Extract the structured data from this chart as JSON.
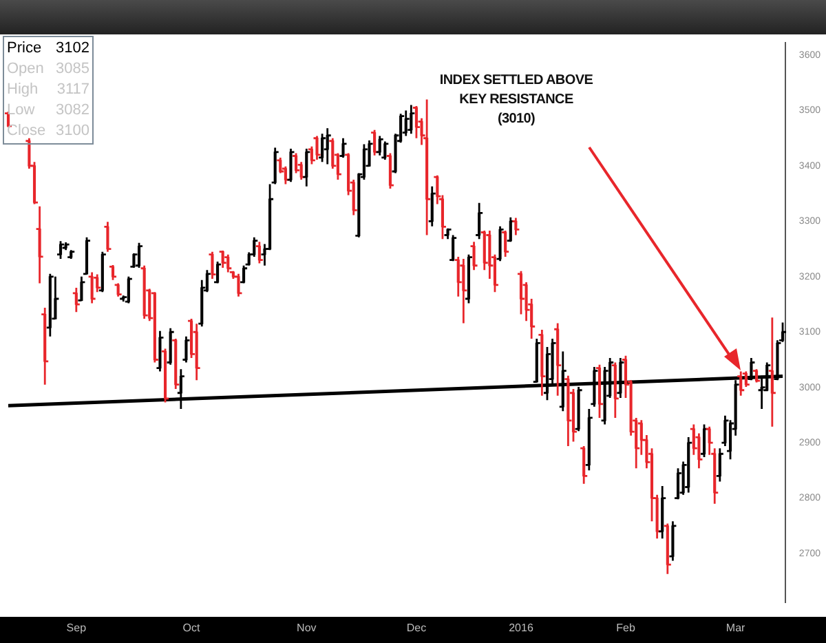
{
  "chart_data": {
    "type": "candlestick",
    "categories": [
      null,
      null,
      null,
      null,
      null,
      null,
      null,
      null,
      null,
      null,
      null,
      null,
      null,
      "Sep",
      null,
      null,
      null,
      null,
      null,
      null,
      null,
      null,
      null,
      null,
      null,
      null,
      null,
      null,
      null,
      null,
      null,
      null,
      null,
      null,
      null,
      "Oct",
      null,
      null,
      null,
      null,
      null,
      null,
      null,
      null,
      null,
      null,
      null,
      null,
      null,
      null,
      null,
      null,
      null,
      null,
      null,
      null,
      null,
      "Nov",
      null,
      null,
      null,
      null,
      null,
      null,
      null,
      null,
      null,
      null,
      null,
      null,
      null,
      null,
      null,
      null,
      null,
      null,
      null,
      null,
      "Dec",
      null,
      null,
      null,
      null,
      null,
      null,
      null,
      null,
      null,
      null,
      null,
      null,
      null,
      null,
      null,
      null,
      null,
      null,
      null,
      "2016",
      null,
      null,
      null,
      null,
      null,
      null,
      null,
      null,
      null,
      null,
      null,
      null,
      null,
      null,
      null,
      null,
      null,
      null,
      null,
      "Feb",
      null,
      null,
      null,
      null,
      null,
      null,
      null,
      null,
      null,
      null,
      null,
      null,
      null,
      null,
      null,
      null,
      null,
      null,
      null,
      null,
      "Mar",
      null,
      null,
      null,
      null,
      null,
      null,
      null,
      null,
      null
    ],
    "ohlc": [
      [
        3495,
        3498,
        3470,
        3472
      ],
      null,
      null,
      null,
      [
        3445,
        3450,
        3395,
        3400
      ],
      [
        3400,
        3407,
        3331,
        3334
      ],
      [
        3286,
        3327,
        3188,
        3236
      ],
      [
        3132,
        3144,
        3005,
        3047
      ],
      [
        3108,
        3205,
        3092,
        3200
      ],
      [
        3124,
        3200,
        3124,
        3160
      ],
      [
        3240,
        3264,
        3232,
        3258
      ],
      [
        3252,
        3262,
        3248,
        3258
      ],
      [
        3235,
        3248,
        3232,
        3245
      ],
      [
        3170,
        3180,
        3136,
        3150
      ],
      [
        3157,
        3200,
        3156,
        3190
      ],
      [
        3205,
        3271,
        3204,
        3265
      ],
      [
        3200,
        3208,
        3152,
        3160
      ],
      [
        3198,
        3204,
        3172,
        3180
      ],
      [
        3175,
        3245,
        3172,
        3240
      ],
      [
        3290,
        3299,
        3245,
        3250
      ],
      [
        3218,
        3221,
        3194,
        3200
      ],
      [
        3185,
        3188,
        3164,
        3168
      ],
      [
        3160,
        3166,
        3155,
        3163
      ],
      [
        3155,
        3200,
        3152,
        3196
      ],
      [
        3218,
        3242,
        3216,
        3240
      ],
      [
        3220,
        3261,
        3216,
        3255
      ],
      [
        3215,
        3220,
        3124,
        3130
      ],
      [
        3175,
        3178,
        3120,
        3125
      ],
      [
        3170,
        3172,
        3045,
        3050
      ],
      [
        3035,
        3102,
        3029,
        3090
      ],
      [
        3065,
        3070,
        2973,
        2980
      ],
      [
        3045,
        3107,
        3041,
        3100
      ],
      [
        3085,
        3088,
        2997,
        3005
      ],
      [
        2990,
        3033,
        2961,
        3020
      ],
      [
        3050,
        3092,
        3045,
        3085
      ],
      [
        3120,
        3124,
        3053,
        3060
      ],
      [
        3100,
        3115,
        3013,
        3035
      ],
      [
        3115,
        3194,
        3110,
        3180
      ],
      [
        3175,
        3212,
        3172,
        3205
      ],
      [
        3240,
        3245,
        3196,
        3204
      ],
      [
        3190,
        3227,
        3188,
        3222
      ],
      [
        3245,
        3247,
        3216,
        3225
      ],
      [
        3235,
        3240,
        3208,
        3215
      ],
      [
        3208,
        3210,
        3196,
        3200
      ],
      [
        3200,
        3205,
        3164,
        3170
      ],
      [
        3190,
        3220,
        3188,
        3215
      ],
      [
        3222,
        3244,
        3220,
        3240
      ],
      [
        3240,
        3271,
        3236,
        3265
      ],
      [
        3255,
        3263,
        3224,
        3230
      ],
      [
        3240,
        3259,
        3220,
        3250
      ],
      [
        3250,
        3367,
        3248,
        3340
      ],
      [
        3370,
        3433,
        3367,
        3425
      ],
      [
        3410,
        3415,
        3387,
        3390
      ],
      [
        3395,
        3399,
        3367,
        3375
      ],
      [
        3375,
        3431,
        3371,
        3425
      ],
      [
        3418,
        3423,
        3387,
        3392
      ],
      [
        3402,
        3407,
        3375,
        3380
      ],
      [
        3380,
        3431,
        3363,
        3425
      ],
      [
        3430,
        3435,
        3403,
        3410
      ],
      [
        3450,
        3454,
        3411,
        3420
      ],
      [
        3415,
        3458,
        3407,
        3450
      ],
      [
        3430,
        3468,
        3403,
        3455
      ],
      [
        3445,
        3450,
        3395,
        3400
      ],
      [
        3420,
        3423,
        3375,
        3385
      ],
      [
        3418,
        3450,
        3415,
        3440
      ],
      [
        3420,
        3423,
        3347,
        3355
      ],
      [
        3370,
        3375,
        3311,
        3320
      ],
      [
        3274,
        3387,
        3271,
        3385
      ],
      [
        3380,
        3439,
        3375,
        3430
      ],
      [
        3400,
        3446,
        3399,
        3440
      ],
      [
        3460,
        3465,
        3419,
        3425
      ],
      [
        3425,
        3454,
        3419,
        3448
      ],
      [
        3415,
        3444,
        3411,
        3440
      ],
      [
        3418,
        3423,
        3359,
        3365
      ],
      [
        3390,
        3458,
        3387,
        3455
      ],
      [
        3445,
        3494,
        3442,
        3490
      ],
      [
        3460,
        3500,
        3454,
        3485
      ],
      [
        3465,
        3510,
        3458,
        3495
      ],
      [
        3505,
        3508,
        3450,
        3470
      ],
      [
        3480,
        3486,
        3438,
        3455
      ],
      [
        3450,
        3520,
        3275,
        3340
      ],
      [
        3300,
        3363,
        3291,
        3350
      ],
      [
        3380,
        3383,
        3331,
        3345
      ],
      [
        3340,
        3347,
        3268,
        3290
      ],
      [
        3275,
        3287,
        3268,
        3285
      ],
      [
        3230,
        3275,
        3228,
        3270
      ],
      [
        3230,
        3236,
        3164,
        3190
      ],
      [
        3220,
        3232,
        3116,
        3175
      ],
      [
        3160,
        3240,
        3152,
        3235
      ],
      [
        3255,
        3263,
        3212,
        3220
      ],
      [
        3275,
        3333,
        3268,
        3315
      ],
      [
        3280,
        3283,
        3212,
        3225
      ],
      [
        3275,
        3283,
        3196,
        3220
      ],
      [
        3235,
        3240,
        3172,
        3185
      ],
      [
        3232,
        3291,
        3228,
        3285
      ],
      [
        3280,
        3283,
        3236,
        3245
      ],
      [
        3265,
        3307,
        3263,
        3300
      ],
      [
        3300,
        3306,
        3275,
        3285
      ],
      [
        3205,
        3210,
        3132,
        3160
      ],
      [
        3185,
        3190,
        3120,
        3140
      ],
      [
        3150,
        3160,
        3088,
        3110
      ],
      [
        3010,
        3088,
        3009,
        3080
      ],
      [
        3095,
        3104,
        2985,
        3020
      ],
      [
        2990,
        3073,
        2977,
        3060
      ],
      [
        3015,
        3088,
        3005,
        3080
      ],
      [
        3105,
        3116,
        2985,
        3040
      ],
      [
        2965,
        3065,
        2957,
        3030
      ],
      [
        3015,
        3021,
        2894,
        2940
      ],
      [
        2990,
        2997,
        2902,
        2920
      ],
      [
        2925,
        3001,
        2921,
        2995
      ],
      [
        2890,
        2894,
        2826,
        2840
      ],
      [
        2860,
        2961,
        2850,
        2945
      ],
      [
        2970,
        3037,
        2965,
        3030
      ],
      [
        3035,
        3041,
        2945,
        2970
      ],
      [
        2940,
        3037,
        2933,
        3030
      ],
      [
        2985,
        3053,
        2981,
        3045
      ],
      [
        3040,
        3045,
        2945,
        2980
      ],
      [
        2990,
        3053,
        2981,
        3045
      ],
      [
        3050,
        3057,
        2981,
        3005
      ],
      [
        3010,
        3013,
        2913,
        2920
      ],
      [
        2940,
        2945,
        2854,
        2890
      ],
      [
        2935,
        2941,
        2878,
        2905
      ],
      [
        2905,
        2914,
        2854,
        2865
      ],
      [
        2880,
        2890,
        2758,
        2800
      ],
      [
        2800,
        2806,
        2727,
        2740
      ],
      [
        2740,
        2822,
        2727,
        2800
      ],
      [
        2750,
        2754,
        2663,
        2680
      ],
      [
        2695,
        2758,
        2687,
        2750
      ],
      [
        2800,
        2854,
        2798,
        2845
      ],
      [
        2810,
        2866,
        2806,
        2860
      ],
      [
        2820,
        2910,
        2810,
        2900
      ],
      [
        2925,
        2933,
        2878,
        2890
      ],
      [
        2910,
        2917,
        2854,
        2870
      ],
      [
        2880,
        2933,
        2874,
        2925
      ],
      [
        2925,
        2929,
        2878,
        2900
      ],
      [
        2880,
        2890,
        2790,
        2810
      ],
      [
        2840,
        2890,
        2830,
        2880
      ],
      [
        2900,
        2949,
        2894,
        2940
      ],
      [
        2885,
        2941,
        2870,
        2935
      ],
      [
        2925,
        3013,
        2913,
        3005
      ],
      [
        3020,
        3029,
        2985,
        2995
      ],
      [
        3025,
        3029,
        3001,
        3005
      ],
      [
        3015,
        3053,
        3013,
        3045
      ],
      [
        3030,
        3033,
        3009,
        3012
      ],
      [
        2995,
        3021,
        2961,
        3000
      ],
      [
        2995,
        3045,
        2993,
        3040
      ],
      [
        3030,
        3126,
        2929,
        2990
      ],
      [
        3015,
        3085,
        3013,
        3080
      ],
      [
        3085,
        3117,
        3082,
        3100
      ]
    ],
    "colors": [
      "#e8262b",
      null,
      null,
      null,
      "#e8262b",
      "#e8262b",
      "#e8262b",
      "#e8262b",
      "#000000",
      "#000000",
      "#000000",
      "#000000",
      "#000000",
      "#e8262b",
      "#000000",
      "#000000",
      "#e8262b",
      "#e8262b",
      "#000000",
      "#e8262b",
      "#e8262b",
      "#e8262b",
      "#000000",
      "#000000",
      "#000000",
      "#000000",
      "#e8262b",
      "#e8262b",
      "#e8262b",
      "#000000",
      "#e8262b",
      "#000000",
      "#e8262b",
      "#000000",
      "#000000",
      "#e8262b",
      "#e8262b",
      "#000000",
      "#000000",
      "#e8262b",
      "#000000",
      "#e8262b",
      "#e8262b",
      "#e8262b",
      "#e8262b",
      "#000000",
      "#000000",
      "#000000",
      "#e8262b",
      "#000000",
      "#000000",
      "#000000",
      "#e8262b",
      "#e8262b",
      "#000000",
      "#e8262b",
      "#e8262b",
      "#000000",
      "#e8262b",
      "#e8262b",
      "#000000",
      "#000000",
      "#e8262b",
      "#e8262b",
      "#000000",
      "#e8262b",
      "#e8262b",
      "#000000",
      "#000000",
      "#000000",
      "#e8262b",
      "#000000",
      "#000000",
      "#e8262b",
      "#000000",
      "#000000",
      "#000000",
      "#000000",
      "#e8262b",
      "#e8262b",
      "#e8262b",
      "#000000",
      "#e8262b",
      "#e8262b",
      "#000000",
      "#000000",
      "#e8262b",
      "#e8262b",
      "#000000",
      "#e8262b",
      "#000000",
      "#e8262b",
      "#e8262b",
      "#e8262b",
      "#000000",
      "#e8262b",
      "#000000",
      "#e8262b",
      "#e8262b",
      "#e8262b",
      "#e8262b",
      "#000000",
      "#e8262b",
      "#000000",
      "#000000",
      "#e8262b",
      "#000000",
      "#e8262b",
      "#e8262b",
      "#000000",
      "#e8262b",
      "#000000",
      "#000000",
      "#e8262b",
      "#000000",
      "#000000",
      "#e8262b",
      "#000000",
      "#e8262b",
      "#e8262b",
      "#e8262b",
      "#e8262b",
      "#e8262b",
      "#e8262b",
      "#e8262b",
      "#000000",
      "#e8262b",
      "#000000",
      "#000000",
      "#000000",
      "#000000",
      "#e8262b",
      "#e8262b",
      "#000000",
      "#e8262b",
      "#e8262b",
      "#000000",
      "#000000",
      "#000000",
      "#000000",
      "#e8262b",
      "#e8262b",
      "#000000",
      "#e8262b",
      "#000000",
      "#000000",
      "#e8262b",
      "#000000",
      "#000000"
    ],
    "series": [
      {
        "type": "line",
        "color": "#000000",
        "values": [
          2967,
          null,
          null,
          null,
          null,
          null,
          null,
          null,
          null,
          null,
          null,
          null,
          null,
          null,
          null,
          null,
          null,
          null,
          null,
          null,
          null,
          null,
          null,
          null,
          null,
          null,
          null,
          null,
          null,
          null,
          null,
          null,
          null,
          null,
          null,
          null,
          null,
          null,
          null,
          null,
          null,
          null,
          null,
          null,
          null,
          null,
          null,
          null,
          null,
          null,
          null,
          null,
          null,
          null,
          null,
          null,
          null,
          null,
          null,
          null,
          null,
          null,
          null,
          null,
          null,
          null,
          null,
          null,
          null,
          null,
          null,
          null,
          null,
          null,
          null,
          null,
          null,
          null,
          null,
          null,
          null,
          null,
          null,
          null,
          null,
          null,
          null,
          null,
          null,
          null,
          null,
          null,
          null,
          null,
          null,
          null,
          null,
          null,
          null,
          null,
          null,
          null,
          null,
          null,
          null,
          null,
          null,
          null,
          null,
          null,
          null,
          null,
          null,
          null,
          null,
          null,
          null,
          null,
          null,
          null,
          null,
          null,
          null,
          null,
          null,
          null,
          null,
          null,
          null,
          null,
          null,
          null,
          null,
          null,
          null,
          null,
          null,
          null,
          null,
          null,
          null,
          null,
          null,
          null,
          null,
          null,
          null,
          null,
          3020
        ]
      }
    ],
    "ylim": [
      2612,
      3622
    ],
    "yticks": [
      2700,
      2800,
      2900,
      3000,
      3100,
      3200,
      3300,
      3400,
      3500,
      3600
    ],
    "annotations": [
      "Price 3102",
      "Open 3085",
      "High 3117",
      "Low 3082",
      "Close 3100",
      "INDEX SETTLED ABOVE\nKEY RESISTANCE\n(3010)"
    ]
  }
}
